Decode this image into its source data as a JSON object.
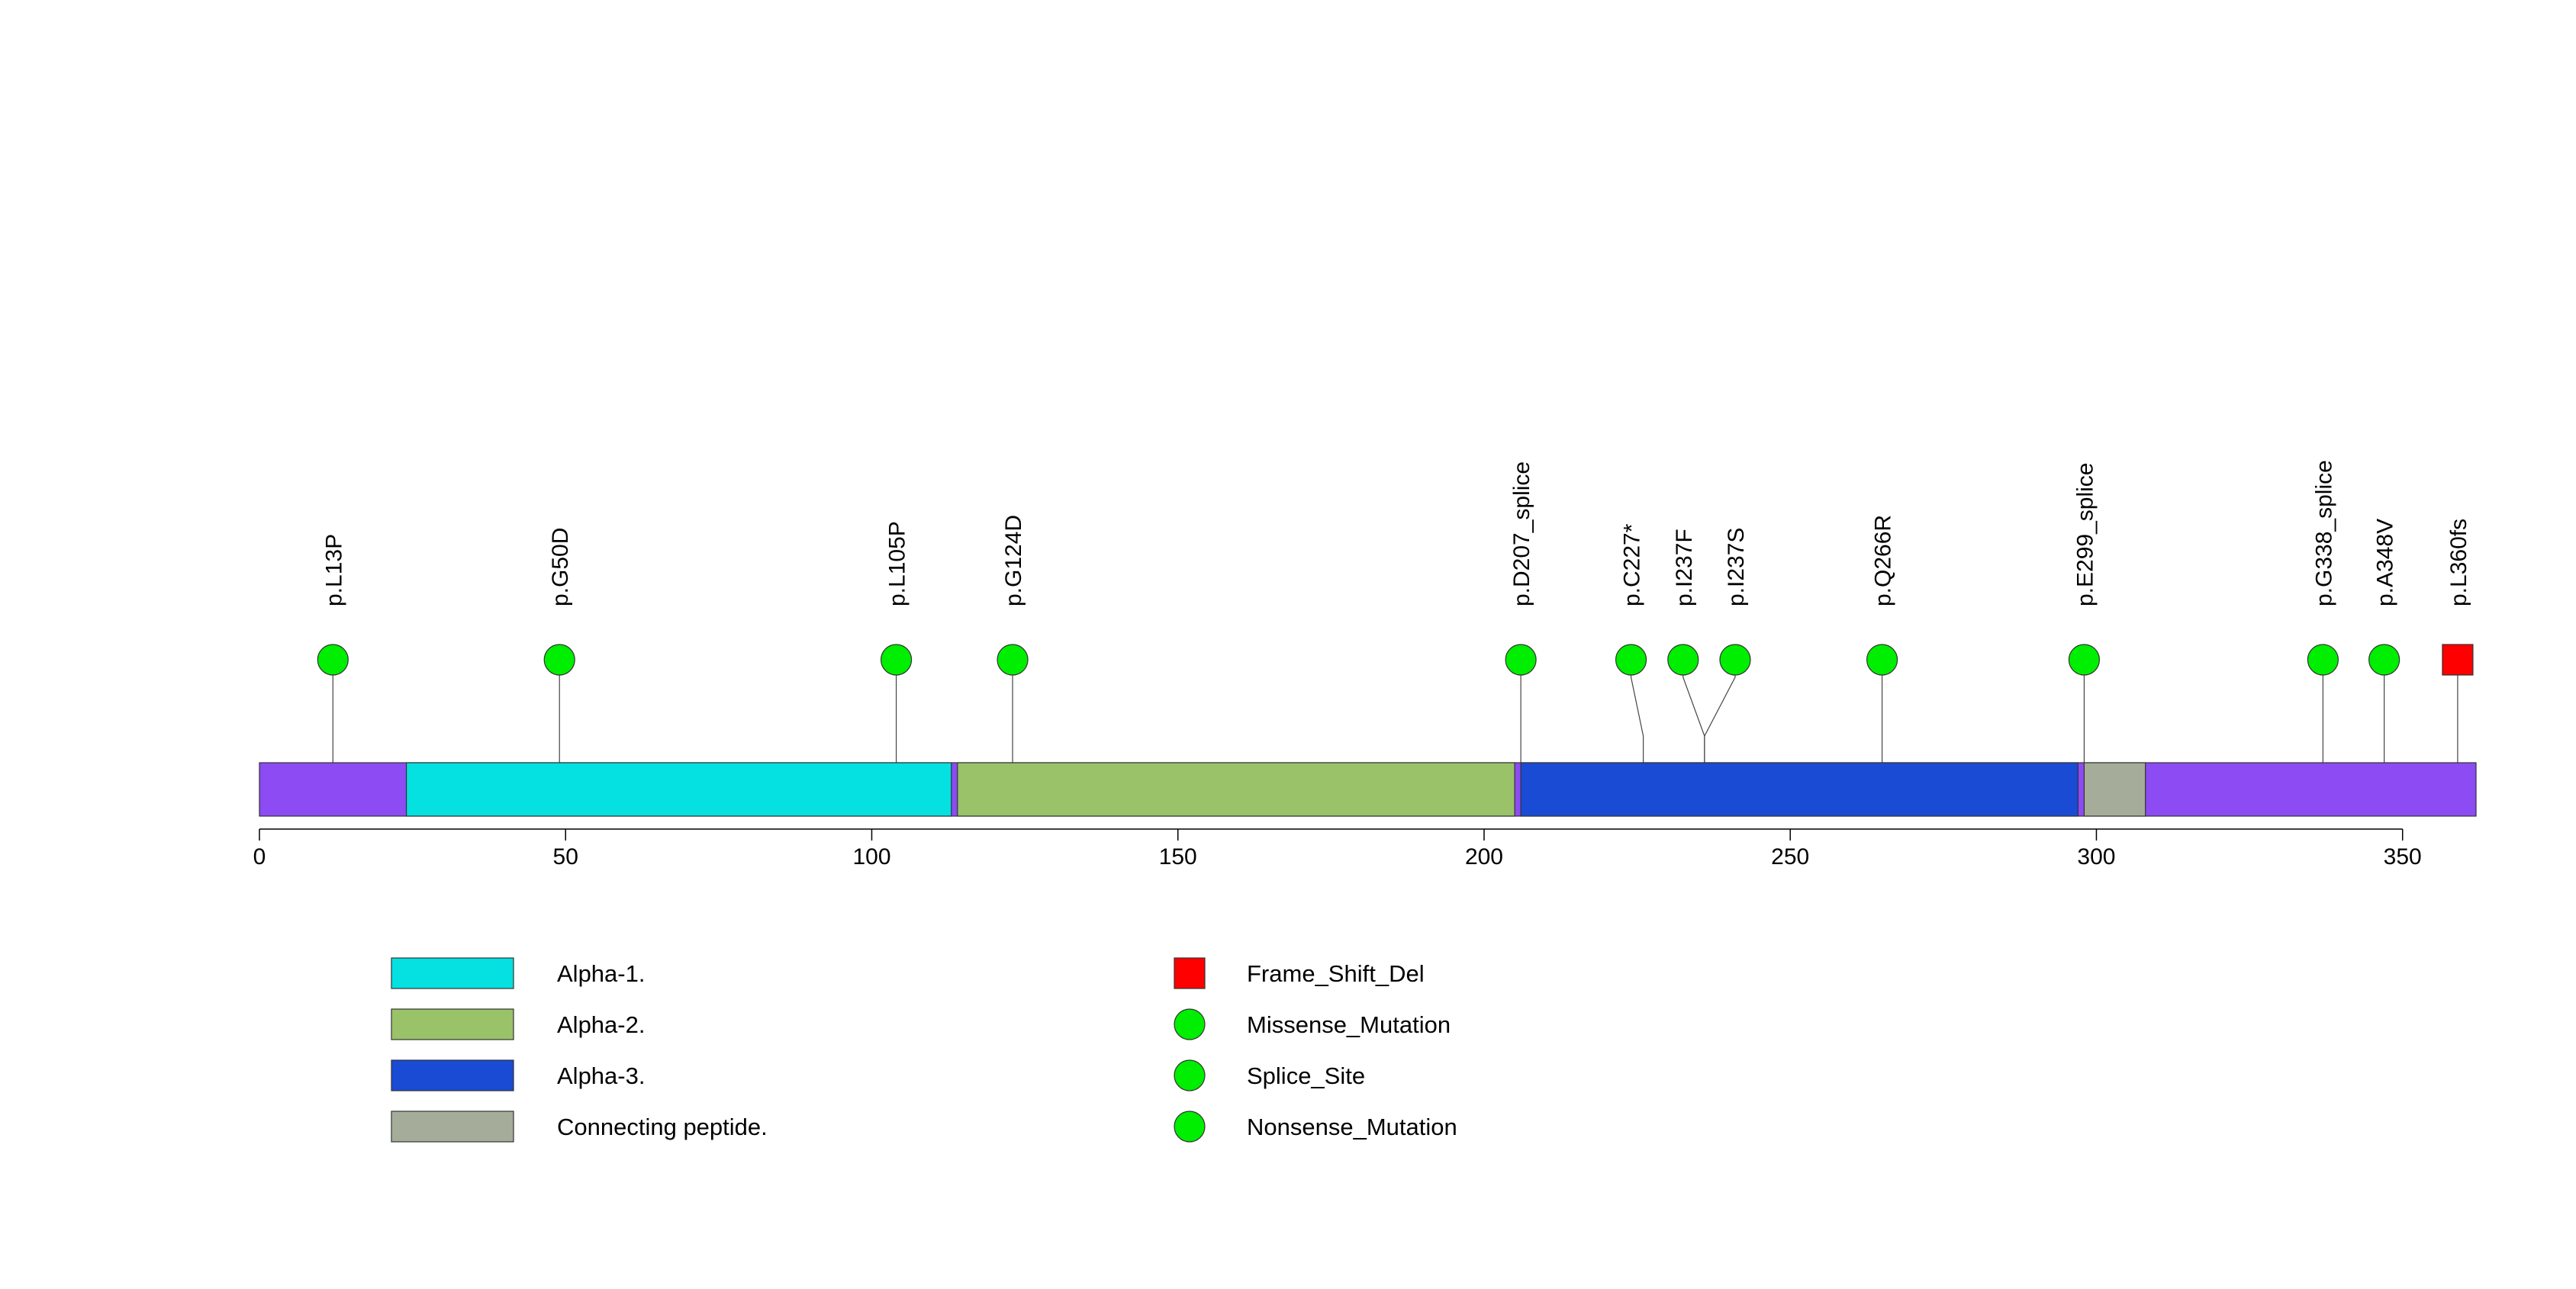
{
  "chart_data": {
    "type": "lollipop",
    "title": "",
    "xlabel": "",
    "ylabel": "",
    "protein_length": 362,
    "xlim": [
      0,
      362
    ],
    "x_ticks": [
      0,
      50,
      100,
      150,
      200,
      250,
      300,
      350
    ],
    "x_tick_labels": [
      "0",
      "50",
      "100",
      "150",
      "200",
      "250",
      "300",
      "350"
    ],
    "backbone_color": "#8c4bf3",
    "domains": [
      {
        "name": "Alpha-1.",
        "start": 24,
        "end": 113,
        "color": "#05e0e0"
      },
      {
        "name": "Alpha-2.",
        "start": 114,
        "end": 205,
        "color": "#99c269"
      },
      {
        "name": "Alpha-3.",
        "start": 206,
        "end": 297,
        "color": "#1a4bd4"
      },
      {
        "name": "Connecting peptide.",
        "start": 298,
        "end": 308,
        "color": "#a5ad9a"
      }
    ],
    "mutations": [
      {
        "label": "p.L13P",
        "position": 12,
        "label_position": 12,
        "type": "Missense_Mutation"
      },
      {
        "label": "p.G50D",
        "position": 49,
        "label_position": 49,
        "type": "Missense_Mutation"
      },
      {
        "label": "p.L105P",
        "position": 104,
        "label_position": 104,
        "type": "Missense_Mutation"
      },
      {
        "label": "p.G124D",
        "position": 123,
        "label_position": 123,
        "type": "Missense_Mutation"
      },
      {
        "label": "p.D207_splice",
        "position": 206,
        "label_position": 206,
        "type": "Splice_Site"
      },
      {
        "label": "p.C227*",
        "position": 226,
        "label_position": 224,
        "type": "Nonsense_Mutation"
      },
      {
        "label": "p.I237F",
        "position": 236,
        "label_position": 232.5,
        "type": "Missense_Mutation"
      },
      {
        "label": "p.I237S",
        "position": 236,
        "label_position": 241,
        "type": "Missense_Mutation"
      },
      {
        "label": "p.Q266R",
        "position": 265,
        "label_position": 265,
        "type": "Missense_Mutation"
      },
      {
        "label": "p.E299_splice",
        "position": 298,
        "label_position": 298,
        "type": "Splice_Site"
      },
      {
        "label": "p.G338_splice",
        "position": 337,
        "label_position": 337,
        "type": "Splice_Site"
      },
      {
        "label": "p.A348V",
        "position": 347,
        "label_position": 347,
        "type": "Missense_Mutation"
      },
      {
        "label": "p.L360fs",
        "position": 359,
        "label_position": 359,
        "type": "Frame_Shift_Del"
      }
    ],
    "domain_legend": [
      {
        "label": "Alpha-1.",
        "color": "#05e0e0"
      },
      {
        "label": "Alpha-2.",
        "color": "#99c269"
      },
      {
        "label": "Alpha-3.",
        "color": "#1a4bd4"
      },
      {
        "label": "Connecting peptide.",
        "color": "#a5ad9a"
      }
    ],
    "mutation_legend": [
      {
        "label": "Frame_Shift_Del",
        "shape": "square",
        "color": "#ff0000"
      },
      {
        "label": "Missense_Mutation",
        "shape": "circle",
        "color": "#00ee00"
      },
      {
        "label": "Splice_Site",
        "shape": "circle",
        "color": "#00ee00"
      },
      {
        "label": "Nonsense_Mutation",
        "shape": "circle",
        "color": "#00ee00"
      }
    ],
    "marker_colors": {
      "Frame_Shift_Del": "#ff0000",
      "Missense_Mutation": "#00ee00",
      "Splice_Site": "#00ee00",
      "Nonsense_Mutation": "#00ee00"
    }
  }
}
